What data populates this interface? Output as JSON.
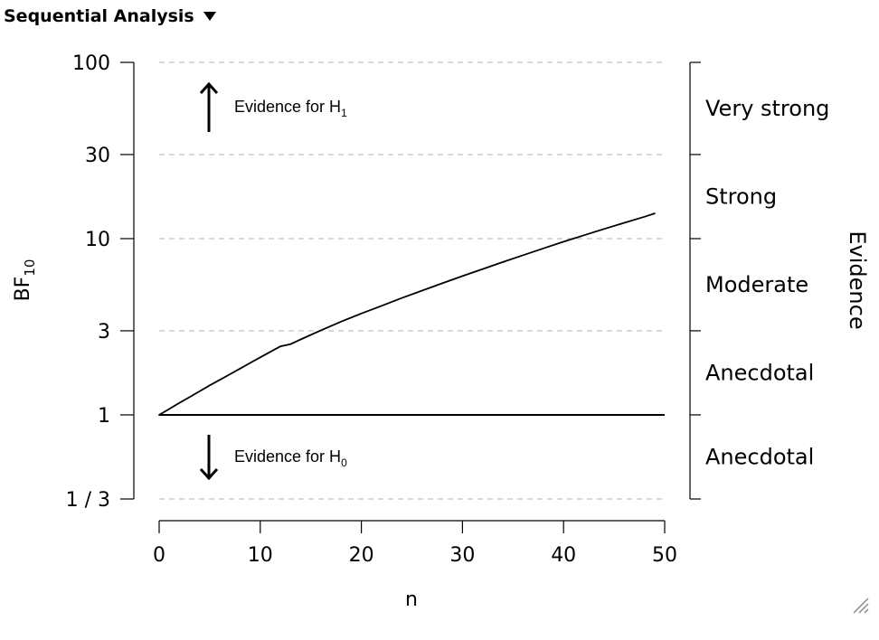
{
  "header": {
    "title": "Sequential Analysis",
    "caret_icon": "caret-down-icon"
  },
  "chart_data": {
    "type": "line",
    "title": "",
    "xlabel": "n",
    "ylabel": "BF",
    "ylabel_subscript": "10",
    "y_scale": "log",
    "xlim": [
      0,
      50
    ],
    "ylim": [
      0.3333,
      100
    ],
    "x_ticks": [
      0,
      10,
      20,
      30,
      40,
      50
    ],
    "x_tick_labels": [
      "0",
      "10",
      "20",
      "30",
      "40",
      "50"
    ],
    "y_ticks": [
      0.3333,
      1,
      3,
      10,
      30,
      100
    ],
    "y_tick_labels": [
      "1 / 3",
      "1",
      "3",
      "10",
      "30",
      "100"
    ],
    "grid": "dashed horizontal at y ticks except 1",
    "reference_line": 1,
    "series": [
      {
        "x": [
          0,
          1,
          2,
          3,
          4,
          5,
          6,
          7,
          8,
          9,
          10,
          11,
          12,
          13,
          14,
          16,
          18,
          20,
          22,
          24,
          26,
          28,
          30,
          32,
          34,
          36,
          38,
          40,
          42,
          44,
          46,
          48,
          49
        ],
        "y": [
          1.0,
          1.08,
          1.17,
          1.26,
          1.36,
          1.47,
          1.58,
          1.7,
          1.83,
          1.97,
          2.12,
          2.28,
          2.45,
          2.52,
          2.68,
          3.02,
          3.38,
          3.76,
          4.16,
          4.6,
          5.07,
          5.58,
          6.13,
          6.72,
          7.36,
          8.05,
          8.8,
          9.6,
          10.45,
          11.35,
          12.3,
          13.3,
          13.9
        ]
      }
    ],
    "annotations": {
      "h1": {
        "text": "Evidence for H",
        "sub": "1"
      },
      "h0": {
        "text": "Evidence for H",
        "sub": "0"
      }
    },
    "evidence_axis": {
      "title": "Evidence",
      "categories": [
        {
          "label": "Very strong",
          "from": 30,
          "to": 100
        },
        {
          "label": "Strong",
          "from": 10,
          "to": 30
        },
        {
          "label": "Moderate",
          "from": 3,
          "to": 10
        },
        {
          "label": "Anecdotal",
          "from": 1,
          "to": 3
        },
        {
          "label": "Anecdotal",
          "from": 0.3333,
          "to": 1
        }
      ]
    },
    "colors": {
      "line": "#000000",
      "grid": "#cccccc"
    }
  },
  "ui": {
    "resize_icon": "resize-grip-icon"
  }
}
